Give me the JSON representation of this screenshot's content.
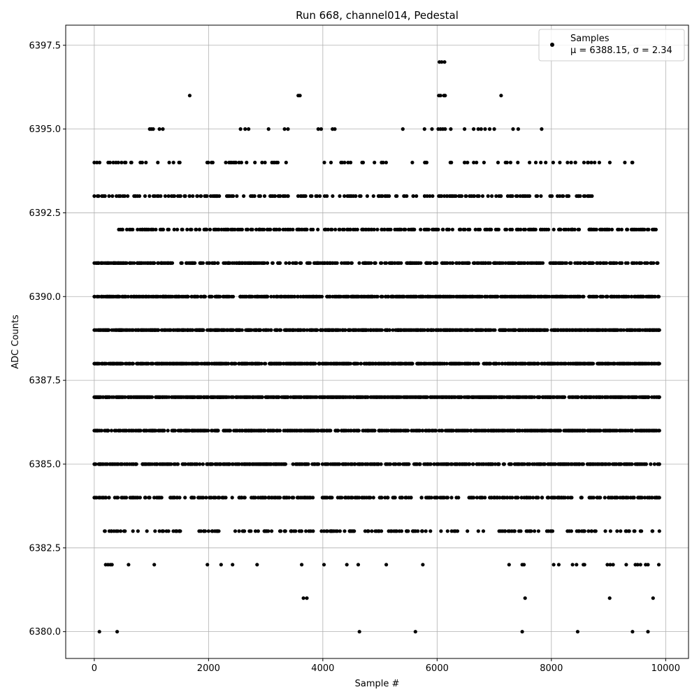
{
  "chart_data": {
    "type": "scatter",
    "title": "Run 668, channel014, Pedestal",
    "xlabel": "Sample #",
    "ylabel": "ADC Counts",
    "xlim": [
      -500,
      10400
    ],
    "ylim": [
      6379.2,
      6398.1
    ],
    "xticks": [
      0,
      2000,
      4000,
      6000,
      8000,
      10000
    ],
    "xtick_labels": [
      "0",
      "2000",
      "4000",
      "6000",
      "8000",
      "10000"
    ],
    "yticks": [
      6380.0,
      6382.5,
      6385.0,
      6387.5,
      6390.0,
      6392.5,
      6395.0,
      6397.5
    ],
    "ytick_labels": [
      "6380.0",
      "6382.5",
      "6385.0",
      "6387.5",
      "6390.0",
      "6392.5",
      "6395.0",
      "6397.5"
    ],
    "grid": true,
    "legend_position": "top-right",
    "marker_color": "#000000",
    "series": [
      {
        "name": "Samples",
        "stats_label": "μ = 6388.15, σ = 2.34",
        "points": [
          {
            "x": 90,
            "y": 6380
          },
          {
            "x": 400,
            "y": 6380
          },
          {
            "x": 4640,
            "y": 6380
          },
          {
            "x": 5620,
            "y": 6380
          },
          {
            "x": 7490,
            "y": 6380
          },
          {
            "x": 8460,
            "y": 6380
          },
          {
            "x": 9420,
            "y": 6380
          },
          {
            "x": 9690,
            "y": 6380
          },
          {
            "x": 3660,
            "y": 6381
          },
          {
            "x": 3720,
            "y": 6381
          },
          {
            "x": 7540,
            "y": 6381
          },
          {
            "x": 9020,
            "y": 6381
          },
          {
            "x": 9780,
            "y": 6381
          },
          {
            "x": 200,
            "y": 6382
          },
          {
            "x": 240,
            "y": 6382
          },
          {
            "x": 280,
            "y": 6382
          },
          {
            "x": 310,
            "y": 6382
          },
          {
            "x": 600,
            "y": 6382
          },
          {
            "x": 1050,
            "y": 6382
          },
          {
            "x": 1980,
            "y": 6382
          },
          {
            "x": 2220,
            "y": 6382
          },
          {
            "x": 2420,
            "y": 6382
          },
          {
            "x": 2850,
            "y": 6382
          },
          {
            "x": 3630,
            "y": 6382
          },
          {
            "x": 4020,
            "y": 6382
          },
          {
            "x": 4420,
            "y": 6382
          },
          {
            "x": 4620,
            "y": 6382
          },
          {
            "x": 5110,
            "y": 6382
          },
          {
            "x": 5750,
            "y": 6382
          },
          {
            "x": 7260,
            "y": 6382
          },
          {
            "x": 7490,
            "y": 6382
          },
          {
            "x": 7520,
            "y": 6382
          },
          {
            "x": 8040,
            "y": 6382
          },
          {
            "x": 8130,
            "y": 6382
          },
          {
            "x": 8370,
            "y": 6382
          },
          {
            "x": 8440,
            "y": 6382
          },
          {
            "x": 8560,
            "y": 6382
          },
          {
            "x": 8580,
            "y": 6382
          },
          {
            "x": 8980,
            "y": 6382
          },
          {
            "x": 9030,
            "y": 6382
          },
          {
            "x": 9080,
            "y": 6382
          },
          {
            "x": 9310,
            "y": 6382
          },
          {
            "x": 9470,
            "y": 6382
          },
          {
            "x": 9510,
            "y": 6382
          },
          {
            "x": 9560,
            "y": 6382
          },
          {
            "x": 9650,
            "y": 6382
          },
          {
            "x": 9690,
            "y": 6382
          },
          {
            "x": 9880,
            "y": 6382
          },
          {
            "x": 7120,
            "y": 6396
          },
          {
            "x": 1670,
            "y": 6396
          },
          {
            "x": 3570,
            "y": 6396
          },
          {
            "x": 3600,
            "y": 6396
          },
          {
            "x": 6030,
            "y": 6396
          },
          {
            "x": 6060,
            "y": 6396
          },
          {
            "x": 6120,
            "y": 6396
          },
          {
            "x": 6140,
            "y": 6396
          },
          {
            "x": 6040,
            "y": 6397
          },
          {
            "x": 6080,
            "y": 6397
          },
          {
            "x": 6130,
            "y": 6397
          },
          {
            "x": 970,
            "y": 6395
          },
          {
            "x": 1000,
            "y": 6395
          },
          {
            "x": 1030,
            "y": 6395
          },
          {
            "x": 1140,
            "y": 6395
          },
          {
            "x": 1200,
            "y": 6395
          },
          {
            "x": 2560,
            "y": 6395
          },
          {
            "x": 2640,
            "y": 6395
          },
          {
            "x": 2700,
            "y": 6395
          },
          {
            "x": 3050,
            "y": 6395
          },
          {
            "x": 3330,
            "y": 6395
          },
          {
            "x": 3390,
            "y": 6395
          },
          {
            "x": 3920,
            "y": 6395
          },
          {
            "x": 3970,
            "y": 6395
          },
          {
            "x": 4170,
            "y": 6395
          },
          {
            "x": 4210,
            "y": 6395
          },
          {
            "x": 5400,
            "y": 6395
          },
          {
            "x": 5780,
            "y": 6395
          },
          {
            "x": 5910,
            "y": 6395
          },
          {
            "x": 6020,
            "y": 6395
          },
          {
            "x": 6060,
            "y": 6395
          },
          {
            "x": 6100,
            "y": 6395
          },
          {
            "x": 6140,
            "y": 6395
          },
          {
            "x": 6240,
            "y": 6395
          },
          {
            "x": 6480,
            "y": 6395
          },
          {
            "x": 6640,
            "y": 6395
          },
          {
            "x": 6720,
            "y": 6395
          },
          {
            "x": 6770,
            "y": 6395
          },
          {
            "x": 6840,
            "y": 6395
          },
          {
            "x": 6920,
            "y": 6395
          },
          {
            "x": 7000,
            "y": 6395
          },
          {
            "x": 7330,
            "y": 6395
          },
          {
            "x": 7420,
            "y": 6395
          },
          {
            "x": 7830,
            "y": 6395
          }
        ],
        "bands": [
          {
            "y": 6394,
            "x_start": 0,
            "x_end": 9420,
            "count": 95,
            "seed": 11
          },
          {
            "y": 6393,
            "x_start": 0,
            "x_end": 8710,
            "count": 210,
            "seed": 23
          },
          {
            "y": 6392,
            "x_start": 430,
            "x_end": 9830,
            "count": 310,
            "seed": 37
          },
          {
            "y": 6391,
            "x_start": 0,
            "x_end": 9860,
            "count": 480,
            "seed": 41
          },
          {
            "y": 6390,
            "x_start": 0,
            "x_end": 9880,
            "count": 700,
            "seed": 53
          },
          {
            "y": 6389,
            "x_start": 0,
            "x_end": 9890,
            "count": 820,
            "seed": 67
          },
          {
            "y": 6388,
            "x_start": 0,
            "x_end": 9890,
            "count": 860,
            "seed": 71
          },
          {
            "y": 6387,
            "x_start": 0,
            "x_end": 9890,
            "count": 800,
            "seed": 83
          },
          {
            "y": 6386,
            "x_start": 0,
            "x_end": 9890,
            "count": 700,
            "seed": 97
          },
          {
            "y": 6385,
            "x_start": 0,
            "x_end": 9890,
            "count": 560,
            "seed": 101
          },
          {
            "y": 6384,
            "x_start": 0,
            "x_end": 9890,
            "count": 360,
            "seed": 113
          },
          {
            "y": 6383,
            "x_start": 180,
            "x_end": 9890,
            "count": 190,
            "seed": 127
          }
        ]
      }
    ]
  }
}
